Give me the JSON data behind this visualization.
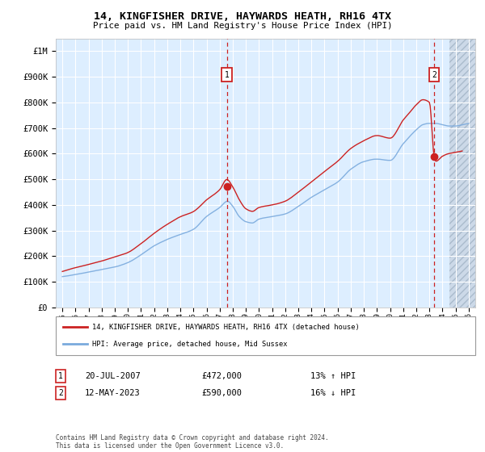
{
  "title": "14, KINGFISHER DRIVE, HAYWARDS HEATH, RH16 4TX",
  "subtitle": "Price paid vs. HM Land Registry's House Price Index (HPI)",
  "legend_line1": "14, KINGFISHER DRIVE, HAYWARDS HEATH, RH16 4TX (detached house)",
  "legend_line2": "HPI: Average price, detached house, Mid Sussex",
  "annotation1_date": "20-JUL-2007",
  "annotation1_price": "£472,000",
  "annotation1_hpi": "13% ↑ HPI",
  "annotation2_date": "12-MAY-2023",
  "annotation2_price": "£590,000",
  "annotation2_hpi": "16% ↓ HPI",
  "footer": "Contains HM Land Registry data © Crown copyright and database right 2024.\nThis data is licensed under the Open Government Licence v3.0.",
  "hpi_color": "#7aaadd",
  "price_color": "#cc2222",
  "marker1_x": 2007.55,
  "marker1_y": 472000,
  "marker2_x": 2023.36,
  "marker2_y": 590000,
  "ylim": [
    0,
    1050000
  ],
  "xlim": [
    1994.5,
    2026.5
  ],
  "bg_color": "#ddeeff",
  "hatch_start": 2024.5
}
